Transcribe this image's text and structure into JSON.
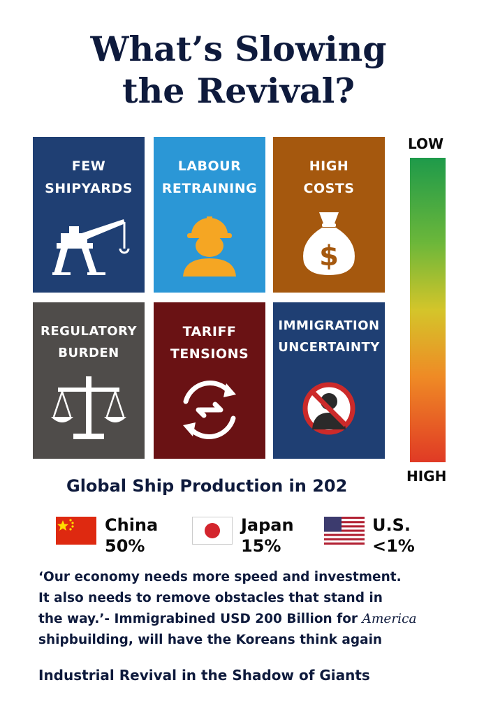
{
  "title": {
    "line1": "What’s Slowing",
    "line2": "the Revival?"
  },
  "tiles": [
    {
      "line1": "FEW",
      "line2": "SHIPYARDS",
      "icon": "crane-icon",
      "color": "#1f3f73"
    },
    {
      "line1": "LABOUR",
      "line2": "RETRAINING",
      "icon": "worker-icon",
      "color": "#2b97d6"
    },
    {
      "line1": "HIGH",
      "line2": "COSTS",
      "icon": "money-bag-icon",
      "color": "#a5580e"
    },
    {
      "line1": "REGULATORY",
      "line2": "BURDEN",
      "icon": "scales-icon",
      "color": "#4f4c4a"
    },
    {
      "line1": "TARIFF",
      "line2": "TENSIONS",
      "icon": "exchange-icon",
      "color": "#6a1214"
    },
    {
      "line1": "IMMIGRATION",
      "line2": "UNCERTAINTY",
      "icon": "no-person-icon",
      "color": "#1f3f73"
    }
  ],
  "scale": {
    "low": "LOW",
    "high": "HIGH"
  },
  "production": {
    "heading": "Global Ship Production in 202",
    "countries": [
      {
        "name": "China",
        "share": "50%",
        "flag": "china-flag"
      },
      {
        "name": "Japan",
        "share": "15%",
        "flag": "japan-flag"
      },
      {
        "name": "U.S.",
        "share": "<1%",
        "flag": "us-flag"
      }
    ]
  },
  "quote": {
    "line1": "‘Our economy needs more speed and investment.",
    "line2": "It also needs to remove obstacles that stand in",
    "line3a": "the way.’- Immigrabined USD 200 Billion for ",
    "line3b": "America",
    "line4": "shipbuilding, will have the Koreans think again"
  },
  "footer": "Industrial Revival in the Shadow of Giants"
}
